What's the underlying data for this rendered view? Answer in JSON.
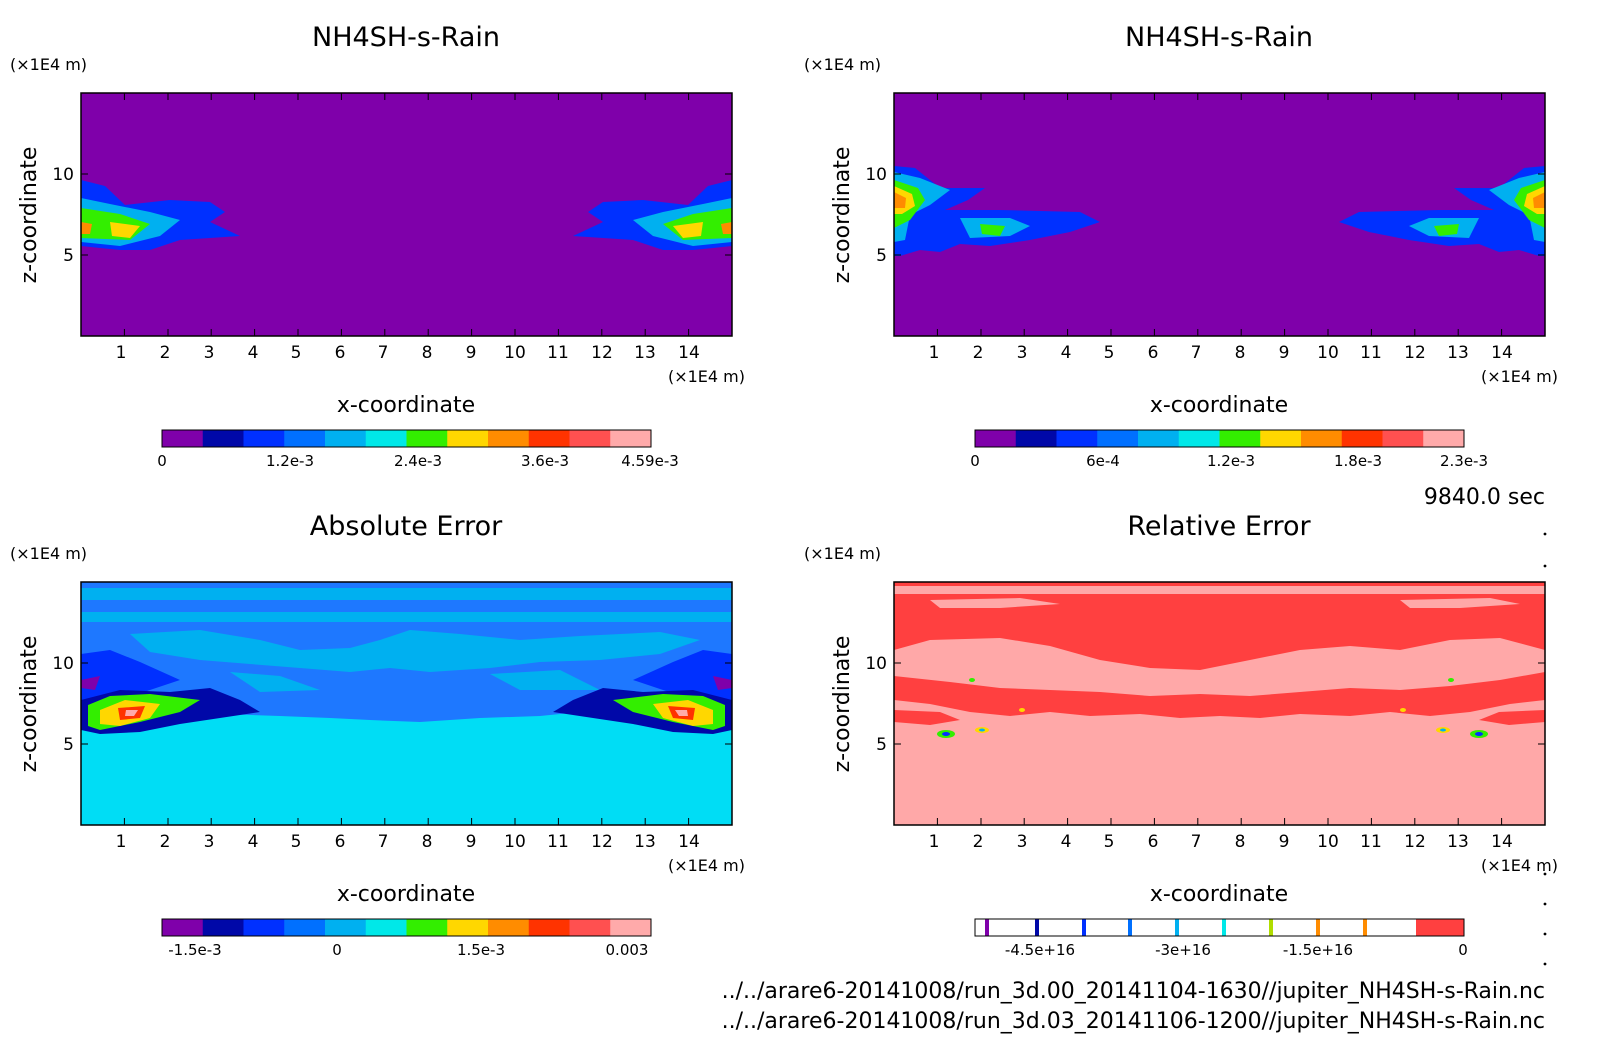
{
  "time_label": "9840.0 sec",
  "footer": {
    "line1": "../../arare6-20141008/run_3d.00_20141104-1630//jupiter_NH4SH-s-Rain.nc",
    "line2": "../../arare6-20141008/run_3d.03_20141106-1200//jupiter_NH4SH-s-Rain.nc"
  },
  "colors": {
    "c0": "#7f00aa",
    "c1": "#0008a8",
    "c2": "#0030ff",
    "c3": "#0070ff",
    "c4": "#00b0f0",
    "c5": "#00e8e8",
    "c6": "#33ee00",
    "c7": "#ffd700",
    "c8": "#ff8c00",
    "c9": "#ff3300",
    "c10": "#ff5050",
    "c11": "#ffaaaa",
    "abs_bg_light": "#00ddf5",
    "abs_bg_mid": "#00b0f0",
    "abs_bg_dark": "#1e78ff",
    "rel_bg_red": "#ff4040",
    "rel_bg_pink": "#ffa8a8"
  },
  "chart_data": [
    {
      "type": "heatmap",
      "title": "NH4SH-s-Rain",
      "xlabel": "x-coordinate",
      "ylabel": "z-coordinate",
      "x_unit": "(×1E4 m)",
      "y_unit": "(×1E4 m)",
      "xlim": [
        0,
        15
      ],
      "ylim": [
        0,
        15
      ],
      "x_ticks": [
        "1",
        "2",
        "3",
        "4",
        "5",
        "6",
        "7",
        "8",
        "9",
        "10",
        "11",
        "12",
        "13",
        "14"
      ],
      "y_ticks": [
        "5",
        "10"
      ],
      "colorbar": {
        "min": 0,
        "max": 0.00459,
        "labels": [
          "0",
          "1.2e-3",
          "2.4e-3",
          "3.6e-3",
          "4.59e-3"
        ]
      },
      "features": [
        {
          "x": 1.0,
          "z": 6.6,
          "value": 0.0045,
          "extent_x": 3.5,
          "extent_z": 2.5
        },
        {
          "x": 14.0,
          "z": 6.6,
          "value": 0.0045,
          "extent_x": 3.5,
          "extent_z": 2.5
        }
      ]
    },
    {
      "type": "heatmap",
      "title": "NH4SH-s-Rain",
      "xlabel": "x-coordinate",
      "ylabel": "z-coordinate",
      "x_unit": "(×1E4 m)",
      "y_unit": "(×1E4 m)",
      "xlim": [
        0,
        15
      ],
      "ylim": [
        0,
        15
      ],
      "x_ticks": [
        "1",
        "2",
        "3",
        "4",
        "5",
        "6",
        "7",
        "8",
        "9",
        "10",
        "11",
        "12",
        "13",
        "14"
      ],
      "y_ticks": [
        "5",
        "10"
      ],
      "colorbar": {
        "min": 0,
        "max": 0.0023,
        "labels": [
          "0",
          "6e-4",
          "1.2e-3",
          "1.8e-3",
          "2.3e-3"
        ]
      },
      "features": [
        {
          "x": 0.2,
          "z": 8.3,
          "value": 0.0023,
          "extent_x": 2.5,
          "extent_z": 4.5
        },
        {
          "x": 2.6,
          "z": 6.6,
          "value": 0.0015,
          "extent_x": 4.5,
          "extent_z": 1.2
        },
        {
          "x": 14.8,
          "z": 8.3,
          "value": 0.0023,
          "extent_x": 2.5,
          "extent_z": 4.5
        },
        {
          "x": 12.4,
          "z": 6.6,
          "value": 0.0015,
          "extent_x": 4.5,
          "extent_z": 1.2
        }
      ]
    },
    {
      "type": "heatmap",
      "title": "Absolute Error",
      "xlabel": "x-coordinate",
      "ylabel": "z-coordinate",
      "x_unit": "(×1E4 m)",
      "y_unit": "(×1E4 m)",
      "xlim": [
        0,
        15
      ],
      "ylim": [
        0,
        15
      ],
      "x_ticks": [
        "1",
        "2",
        "3",
        "4",
        "5",
        "6",
        "7",
        "8",
        "9",
        "10",
        "11",
        "12",
        "13",
        "14"
      ],
      "y_ticks": [
        "5",
        "10"
      ],
      "colorbar": {
        "min": -0.0015,
        "max": 0.003,
        "labels": [
          "-1.5e-3",
          "0",
          "1.5e-3",
          "0.003"
        ]
      },
      "features": [
        {
          "x": 1.0,
          "z": 6.8,
          "value": 0.003,
          "extent_x": 3.0,
          "extent_z": 2.0
        },
        {
          "x": 14.0,
          "z": 6.8,
          "value": 0.003,
          "extent_x": 3.0,
          "extent_z": 2.0
        }
      ]
    },
    {
      "type": "heatmap",
      "title": "Relative Error",
      "xlabel": "x-coordinate",
      "ylabel": "z-coordinate",
      "x_unit": "(×1E4 m)",
      "y_unit": "(×1E4 m)",
      "xlim": [
        0,
        15
      ],
      "ylim": [
        0,
        15
      ],
      "x_ticks": [
        "1",
        "2",
        "3",
        "4",
        "5",
        "6",
        "7",
        "8",
        "9",
        "10",
        "11",
        "12",
        "13",
        "14"
      ],
      "y_ticks": [
        "5",
        "10"
      ],
      "colorbar": {
        "min": -5.5e+16,
        "max": 0,
        "labels": [
          "-4.5e+16",
          "-3e+16",
          "-1.5e+16",
          "0"
        ]
      },
      "features": [
        {
          "x": 1.2,
          "z": 5.2,
          "value": 0,
          "extent_x": 0.5,
          "extent_z": 0.4
        },
        {
          "x": 2.1,
          "z": 5.3,
          "value": 0,
          "extent_x": 0.4,
          "extent_z": 0.4
        },
        {
          "x": 13.8,
          "z": 5.2,
          "value": 0,
          "extent_x": 0.5,
          "extent_z": 0.4
        },
        {
          "x": 12.9,
          "z": 5.3,
          "value": 0,
          "extent_x": 0.4,
          "extent_z": 0.4
        }
      ]
    }
  ]
}
